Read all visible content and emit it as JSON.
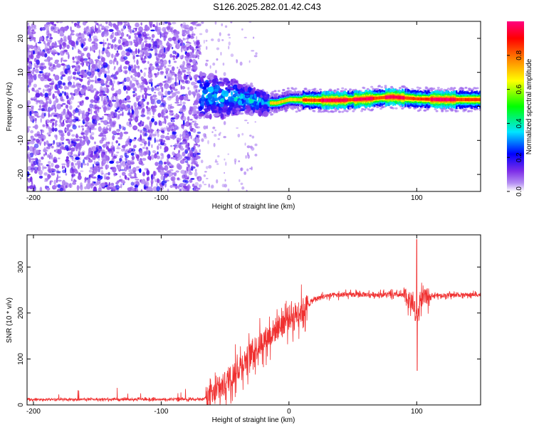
{
  "title": "S126.2025.282.01.42.C43",
  "chart_data": [
    {
      "type": "heatmap",
      "name": "spectrogram",
      "xlabel": "Height of straight line (km)",
      "ylabel": "Frequency (Hz)",
      "xlim": [
        -205,
        150
      ],
      "ylim": [
        -25,
        25
      ],
      "xticks": [
        -200,
        -100,
        0,
        100
      ],
      "yticks": [
        -20,
        -10,
        0,
        10,
        20
      ],
      "colorbar": {
        "label": "Normalized spectral amplitude",
        "range": [
          0,
          1
        ],
        "ticks": [
          "0.0",
          "0.2",
          "0.4",
          "0.6",
          "0.8"
        ],
        "colors": [
          "#ffffff",
          "#7d2ee8",
          "#0000ff",
          "#00e5ff",
          "#00ff00",
          "#ffff00",
          "#ff8000",
          "#ff0000",
          "#ff0080"
        ]
      },
      "features": {
        "noise_region_x": [
          -205,
          -70
        ],
        "transition_x": [
          -70,
          -15
        ],
        "signal_band_center_hz": [
          [
            -70,
            3.5
          ],
          [
            -50,
            2.5
          ],
          [
            -35,
            2.5
          ],
          [
            -20,
            1
          ],
          [
            -10,
            1
          ],
          [
            0,
            2
          ],
          [
            20,
            1.8
          ],
          [
            40,
            1.8
          ],
          [
            60,
            2.2
          ],
          [
            80,
            2.8
          ],
          [
            100,
            2.2
          ],
          [
            120,
            2
          ],
          [
            150,
            2
          ]
        ]
      }
    },
    {
      "type": "line",
      "name": "snr",
      "xlabel": "Height of straight line (km)",
      "ylabel": "SNR (10 * v/v)",
      "xlim": [
        -205,
        150
      ],
      "ylim": [
        0,
        370
      ],
      "xticks": [
        -200,
        -100,
        0,
        100
      ],
      "yticks": [
        0,
        100,
        200,
        300
      ],
      "color": "#f03030",
      "series_envelope": [
        [
          -205,
          12
        ],
        [
          -70,
          12
        ],
        [
          -60,
          20
        ],
        [
          -50,
          45
        ],
        [
          -40,
          80
        ],
        [
          -30,
          110
        ],
        [
          -20,
          140
        ],
        [
          -10,
          165
        ],
        [
          0,
          190
        ],
        [
          10,
          205
        ],
        [
          20,
          230
        ],
        [
          30,
          238
        ],
        [
          50,
          240
        ],
        [
          80,
          240
        ],
        [
          90,
          238
        ],
        [
          97,
          220
        ],
        [
          100,
          180
        ],
        [
          103,
          230
        ],
        [
          110,
          238
        ],
        [
          150,
          240
        ]
      ],
      "annotations": [
        {
          "x": 100,
          "y": 360,
          "note": "peak spike"
        },
        {
          "x": 100,
          "y": 75,
          "note": "dip spike"
        }
      ]
    }
  ]
}
